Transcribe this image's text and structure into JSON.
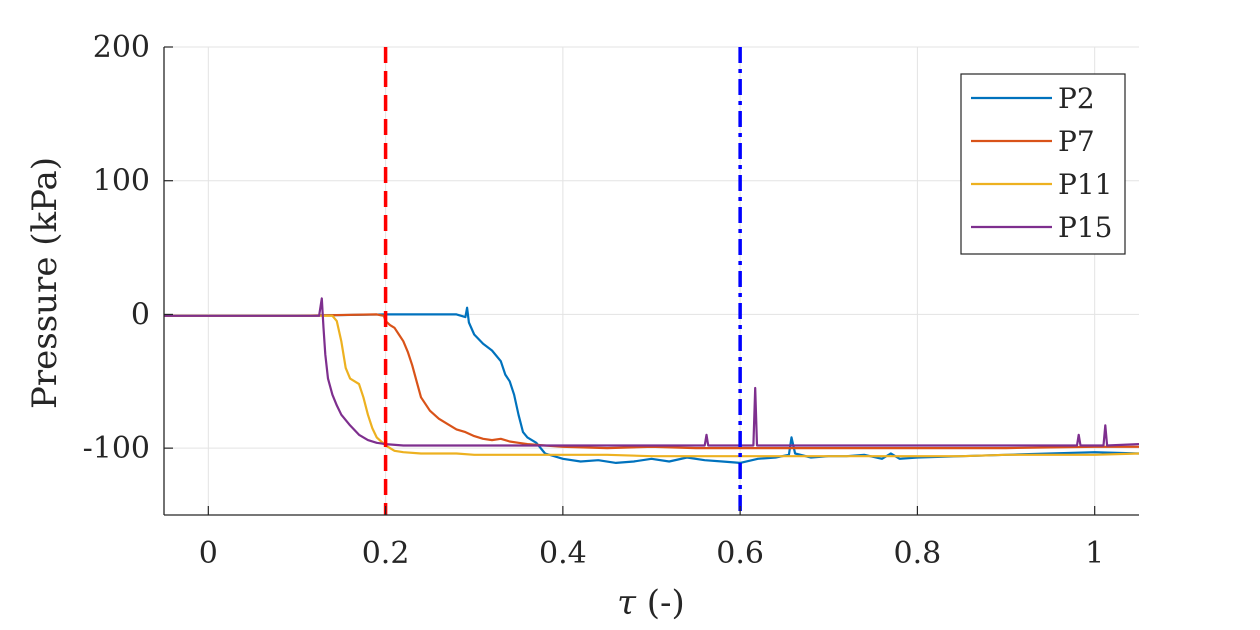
{
  "chart_data": {
    "type": "line",
    "title": "",
    "xlabel": "τ (-)",
    "ylabel": "Pressure (kPa)",
    "xlim": [
      -0.05,
      1.05
    ],
    "ylim": [
      -150,
      200
    ],
    "grid": true,
    "legend_position": "top-right",
    "xticks": [
      {
        "value": 0,
        "label": "0"
      },
      {
        "value": 0.2,
        "label": "0.2"
      },
      {
        "value": 0.4,
        "label": "0.4"
      },
      {
        "value": 0.6,
        "label": "0.6"
      },
      {
        "value": 0.8,
        "label": "0.8"
      },
      {
        "value": 1,
        "label": "1"
      }
    ],
    "yticks": [
      {
        "value": 200,
        "label": "200"
      },
      {
        "value": 100,
        "label": "100"
      },
      {
        "value": 0,
        "label": "0"
      },
      {
        "value": -100,
        "label": "-100"
      }
    ],
    "vlines": [
      {
        "x": 0.2,
        "color": "#ff0000",
        "style": "dashed"
      },
      {
        "x": 0.6,
        "color": "#0000ff",
        "style": "dashdot"
      }
    ],
    "series": [
      {
        "name": "P2",
        "color": "#0072BD",
        "points": [
          [
            -0.05,
            -1
          ],
          [
            0.1,
            -1
          ],
          [
            0.2,
            0
          ],
          [
            0.25,
            0
          ],
          [
            0.28,
            0
          ],
          [
            0.29,
            -2
          ],
          [
            0.292,
            5
          ],
          [
            0.294,
            -6
          ],
          [
            0.3,
            -15
          ],
          [
            0.31,
            -22
          ],
          [
            0.32,
            -27
          ],
          [
            0.33,
            -35
          ],
          [
            0.335,
            -45
          ],
          [
            0.34,
            -50
          ],
          [
            0.345,
            -60
          ],
          [
            0.35,
            -75
          ],
          [
            0.355,
            -88
          ],
          [
            0.36,
            -92
          ],
          [
            0.37,
            -96
          ],
          [
            0.38,
            -104
          ],
          [
            0.4,
            -108
          ],
          [
            0.42,
            -110
          ],
          [
            0.44,
            -109
          ],
          [
            0.46,
            -111
          ],
          [
            0.48,
            -110
          ],
          [
            0.5,
            -108
          ],
          [
            0.52,
            -110
          ],
          [
            0.54,
            -107
          ],
          [
            0.56,
            -109
          ],
          [
            0.58,
            -110
          ],
          [
            0.6,
            -111
          ],
          [
            0.62,
            -108
          ],
          [
            0.64,
            -107
          ],
          [
            0.655,
            -105
          ],
          [
            0.658,
            -92
          ],
          [
            0.662,
            -104
          ],
          [
            0.68,
            -107
          ],
          [
            0.7,
            -106
          ],
          [
            0.72,
            -106
          ],
          [
            0.74,
            -105
          ],
          [
            0.76,
            -108
          ],
          [
            0.77,
            -104
          ],
          [
            0.78,
            -108
          ],
          [
            0.8,
            -107
          ],
          [
            0.85,
            -106
          ],
          [
            0.9,
            -105
          ],
          [
            0.95,
            -104
          ],
          [
            1.0,
            -103
          ],
          [
            1.05,
            -104
          ]
        ]
      },
      {
        "name": "P7",
        "color": "#D95319",
        "points": [
          [
            -0.05,
            -1
          ],
          [
            0.1,
            -1
          ],
          [
            0.19,
            0
          ],
          [
            0.198,
            -1
          ],
          [
            0.2,
            -5
          ],
          [
            0.205,
            -8
          ],
          [
            0.21,
            -10
          ],
          [
            0.215,
            -15
          ],
          [
            0.22,
            -20
          ],
          [
            0.225,
            -28
          ],
          [
            0.23,
            -38
          ],
          [
            0.235,
            -50
          ],
          [
            0.24,
            -62
          ],
          [
            0.25,
            -72
          ],
          [
            0.26,
            -78
          ],
          [
            0.27,
            -82
          ],
          [
            0.28,
            -86
          ],
          [
            0.29,
            -88
          ],
          [
            0.3,
            -91
          ],
          [
            0.31,
            -93
          ],
          [
            0.32,
            -94
          ],
          [
            0.33,
            -93
          ],
          [
            0.34,
            -95
          ],
          [
            0.35,
            -96
          ],
          [
            0.36,
            -97
          ],
          [
            0.38,
            -98
          ],
          [
            0.4,
            -99
          ],
          [
            0.45,
            -100
          ],
          [
            0.5,
            -99
          ],
          [
            0.55,
            -100
          ],
          [
            0.6,
            -100
          ],
          [
            0.7,
            -100
          ],
          [
            0.8,
            -100
          ],
          [
            0.9,
            -100
          ],
          [
            1.0,
            -99
          ],
          [
            1.05,
            -99
          ]
        ]
      },
      {
        "name": "P11",
        "color": "#EDB120",
        "points": [
          [
            -0.05,
            -1
          ],
          [
            0.1,
            -1
          ],
          [
            0.14,
            -1
          ],
          [
            0.145,
            -5
          ],
          [
            0.15,
            -20
          ],
          [
            0.155,
            -40
          ],
          [
            0.16,
            -48
          ],
          [
            0.165,
            -50
          ],
          [
            0.17,
            -52
          ],
          [
            0.175,
            -62
          ],
          [
            0.18,
            -75
          ],
          [
            0.185,
            -85
          ],
          [
            0.19,
            -92
          ],
          [
            0.195,
            -95
          ],
          [
            0.2,
            -98
          ],
          [
            0.21,
            -102
          ],
          [
            0.22,
            -103
          ],
          [
            0.24,
            -104
          ],
          [
            0.26,
            -104
          ],
          [
            0.28,
            -104
          ],
          [
            0.3,
            -105
          ],
          [
            0.35,
            -105
          ],
          [
            0.4,
            -105
          ],
          [
            0.45,
            -105
          ],
          [
            0.5,
            -106
          ],
          [
            0.55,
            -106
          ],
          [
            0.6,
            -106
          ],
          [
            0.65,
            -106
          ],
          [
            0.7,
            -106
          ],
          [
            0.75,
            -106
          ],
          [
            0.8,
            -106
          ],
          [
            0.85,
            -106
          ],
          [
            0.9,
            -105
          ],
          [
            0.95,
            -105
          ],
          [
            1.0,
            -105
          ],
          [
            1.05,
            -104
          ]
        ]
      },
      {
        "name": "P15",
        "color": "#7E2F8E",
        "points": [
          [
            -0.05,
            -1
          ],
          [
            0.1,
            -1
          ],
          [
            0.125,
            -1
          ],
          [
            0.128,
            12
          ],
          [
            0.13,
            -10
          ],
          [
            0.132,
            -30
          ],
          [
            0.135,
            -48
          ],
          [
            0.14,
            -60
          ],
          [
            0.145,
            -68
          ],
          [
            0.15,
            -75
          ],
          [
            0.16,
            -83
          ],
          [
            0.17,
            -90
          ],
          [
            0.18,
            -94
          ],
          [
            0.19,
            -96
          ],
          [
            0.2,
            -97
          ],
          [
            0.22,
            -98
          ],
          [
            0.25,
            -98
          ],
          [
            0.3,
            -98
          ],
          [
            0.35,
            -98
          ],
          [
            0.4,
            -98
          ],
          [
            0.45,
            -98
          ],
          [
            0.5,
            -98
          ],
          [
            0.55,
            -98
          ],
          [
            0.56,
            -98
          ],
          [
            0.562,
            -90
          ],
          [
            0.564,
            -98
          ],
          [
            0.6,
            -98
          ],
          [
            0.615,
            -98
          ],
          [
            0.617,
            -55
          ],
          [
            0.619,
            -98
          ],
          [
            0.65,
            -98
          ],
          [
            0.7,
            -98
          ],
          [
            0.75,
            -98
          ],
          [
            0.8,
            -98
          ],
          [
            0.85,
            -98
          ],
          [
            0.9,
            -98
          ],
          [
            0.95,
            -98
          ],
          [
            0.98,
            -98
          ],
          [
            0.982,
            -90
          ],
          [
            0.984,
            -98
          ],
          [
            1.0,
            -98
          ],
          [
            1.01,
            -98
          ],
          [
            1.012,
            -83
          ],
          [
            1.014,
            -98
          ],
          [
            1.05,
            -97
          ]
        ]
      }
    ]
  }
}
